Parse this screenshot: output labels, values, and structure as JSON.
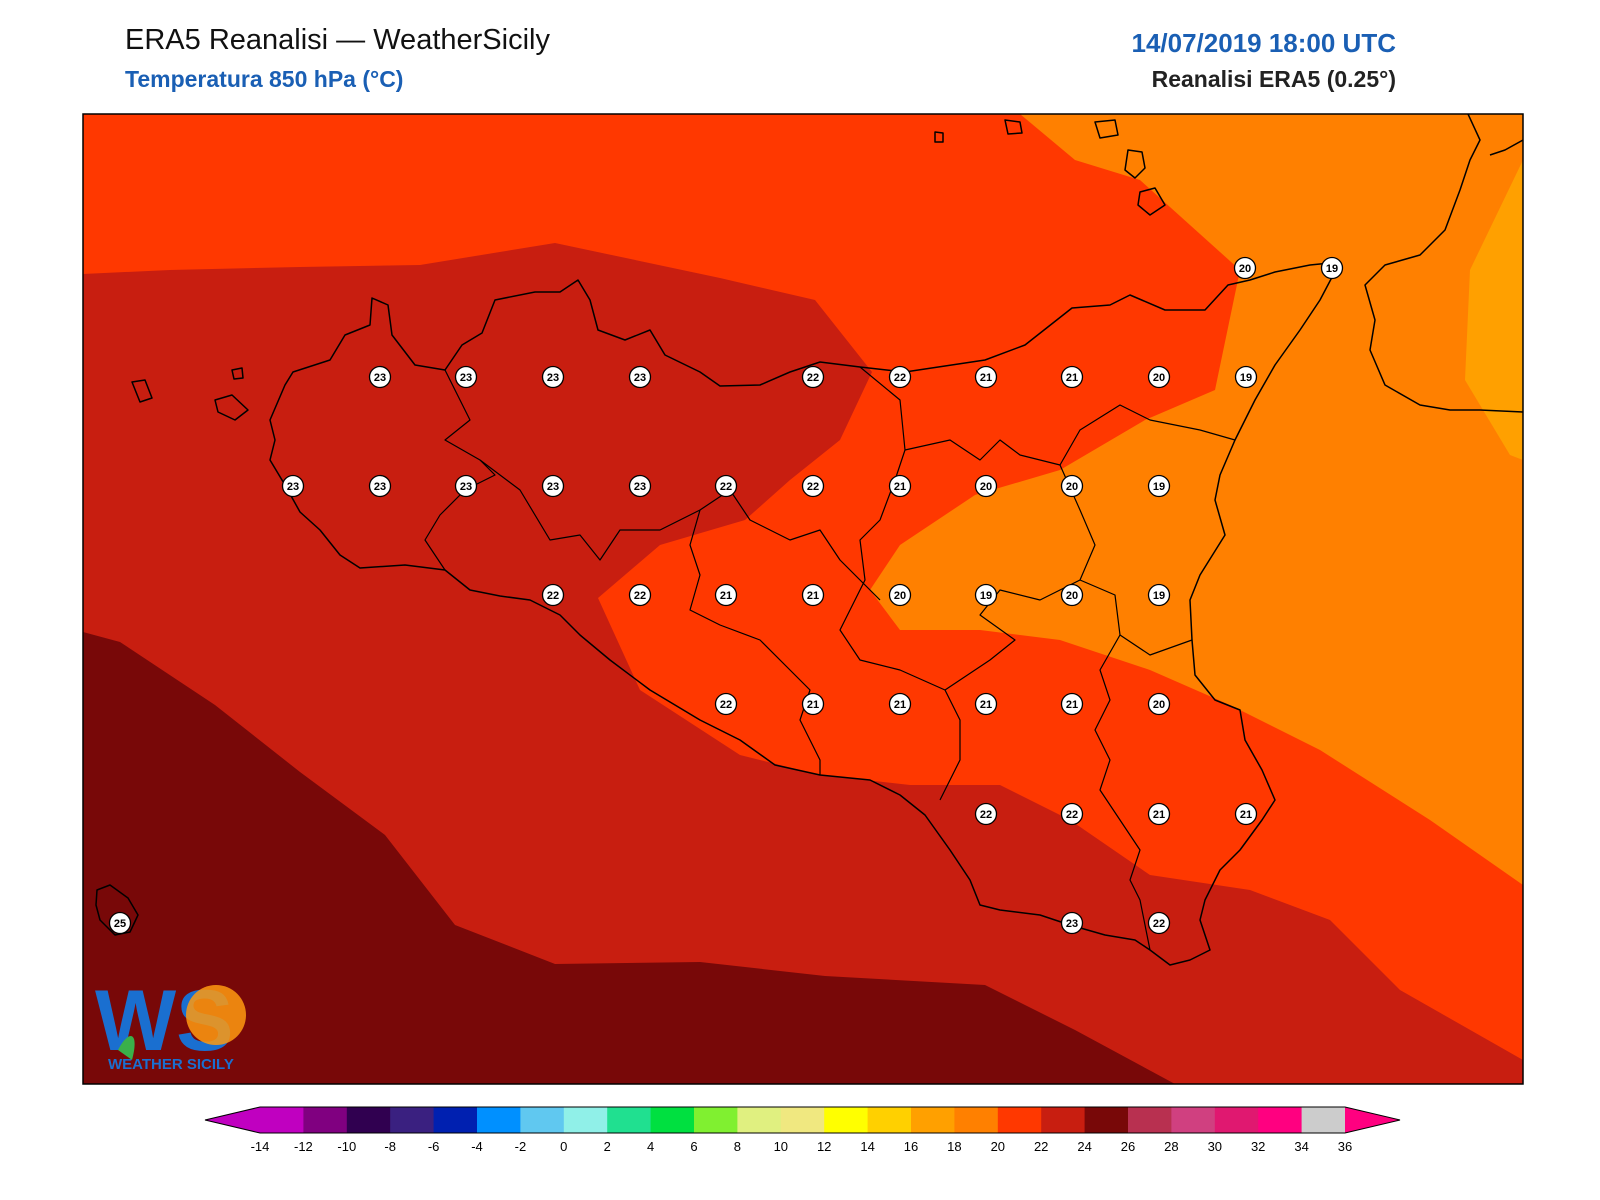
{
  "header": {
    "title": "ERA5 Reanalisi — WeatherSicily",
    "subtitle": "Temperatura 850 hPa (°C)",
    "datetime": "14/07/2019 18:00 UTC",
    "source": "Reanalisi ERA5 (0.25°)"
  },
  "logo": {
    "letters": "WS",
    "name": "WEATHER SICILY"
  },
  "map": {
    "station_values": [
      20,
      19,
      23,
      23,
      23,
      23,
      22,
      22,
      21,
      21,
      20,
      19,
      23,
      23,
      23,
      23,
      23,
      22,
      22,
      21,
      20,
      20,
      19,
      22,
      22,
      21,
      21,
      20,
      19,
      20,
      19,
      22,
      21,
      21,
      21,
      21,
      20,
      22,
      22,
      21,
      21,
      23,
      22,
      25
    ]
  },
  "colorbar": {
    "ticks": [
      "-14",
      "-12",
      "-10",
      "-8",
      "-6",
      "-4",
      "-2",
      "0",
      "2",
      "4",
      "6",
      "8",
      "10",
      "12",
      "14",
      "16",
      "18",
      "20",
      "22",
      "24",
      "26",
      "28",
      "30",
      "32",
      "34",
      "36"
    ],
    "colors": [
      "#c000c0",
      "#800080",
      "#300050",
      "#3a2080",
      "#0020b0",
      "#0090ff",
      "#60c8f0",
      "#90f0e8",
      "#20e090",
      "#00e040",
      "#80f030",
      "#e0f080",
      "#f0e880",
      "#ffff00",
      "#ffd000",
      "#ffa000",
      "#ff8000",
      "#ff3800",
      "#c81e10",
      "#780808",
      "#b83050",
      "#d04080",
      "#e01870",
      "#ff0080"
    ],
    "low_end_color": "#c000c0",
    "high_end_color": "#ff0080"
  }
}
